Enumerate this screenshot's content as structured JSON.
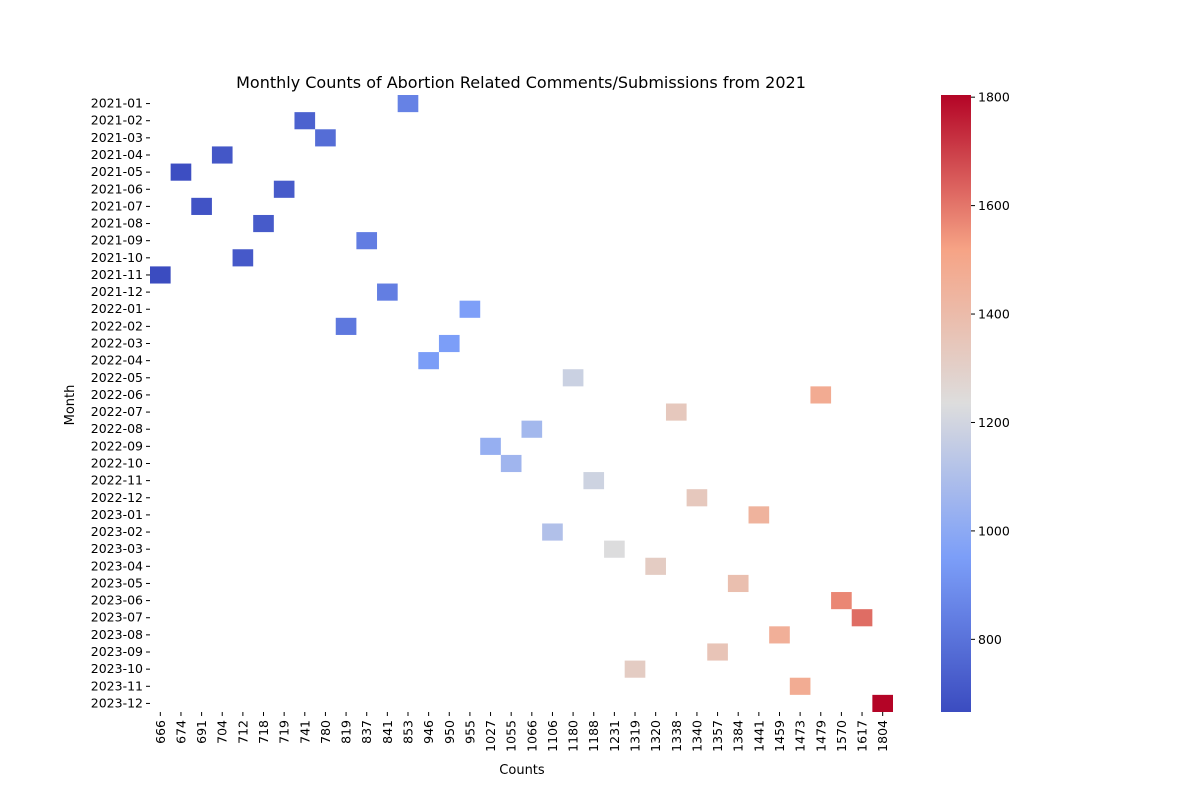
{
  "chart_data": {
    "type": "heatmap",
    "title": "Monthly Counts of Abortion Related Comments/Submissions from 2021",
    "xlabel": "Counts",
    "ylabel": "Month",
    "colormap": "coolwarm",
    "colorbar": {
      "min": 666,
      "max": 1804,
      "ticks": [
        800,
        1000,
        1200,
        1400,
        1600,
        1800
      ]
    },
    "x_categories": [
      666,
      674,
      691,
      704,
      712,
      718,
      719,
      741,
      780,
      819,
      837,
      841,
      853,
      946,
      950,
      955,
      1027,
      1055,
      1066,
      1106,
      1180,
      1188,
      1231,
      1319,
      1320,
      1338,
      1340,
      1357,
      1384,
      1441,
      1459,
      1473,
      1479,
      1570,
      1617,
      1804
    ],
    "points": [
      {
        "month": "2021-01",
        "count": 853
      },
      {
        "month": "2021-02",
        "count": 741
      },
      {
        "month": "2021-03",
        "count": 780
      },
      {
        "month": "2021-04",
        "count": 704
      },
      {
        "month": "2021-05",
        "count": 674
      },
      {
        "month": "2021-06",
        "count": 719
      },
      {
        "month": "2021-07",
        "count": 691
      },
      {
        "month": "2021-08",
        "count": 718
      },
      {
        "month": "2021-09",
        "count": 837
      },
      {
        "month": "2021-10",
        "count": 712
      },
      {
        "month": "2021-11",
        "count": 666
      },
      {
        "month": "2021-12",
        "count": 841
      },
      {
        "month": "2022-01",
        "count": 955
      },
      {
        "month": "2022-02",
        "count": 819
      },
      {
        "month": "2022-03",
        "count": 950
      },
      {
        "month": "2022-04",
        "count": 946
      },
      {
        "month": "2022-05",
        "count": 1180
      },
      {
        "month": "2022-06",
        "count": 1479
      },
      {
        "month": "2022-07",
        "count": 1338
      },
      {
        "month": "2022-08",
        "count": 1066
      },
      {
        "month": "2022-09",
        "count": 1027
      },
      {
        "month": "2022-10",
        "count": 1055
      },
      {
        "month": "2022-11",
        "count": 1188
      },
      {
        "month": "2022-12",
        "count": 1340
      },
      {
        "month": "2023-01",
        "count": 1441
      },
      {
        "month": "2023-02",
        "count": 1106
      },
      {
        "month": "2023-03",
        "count": 1231
      },
      {
        "month": "2023-04",
        "count": 1320
      },
      {
        "month": "2023-05",
        "count": 1384
      },
      {
        "month": "2023-06",
        "count": 1570
      },
      {
        "month": "2023-07",
        "count": 1617
      },
      {
        "month": "2023-08",
        "count": 1459
      },
      {
        "month": "2023-09",
        "count": 1357
      },
      {
        "month": "2023-10",
        "count": 1319
      },
      {
        "month": "2023-11",
        "count": 1473
      },
      {
        "month": "2023-12",
        "count": 1804
      }
    ]
  }
}
